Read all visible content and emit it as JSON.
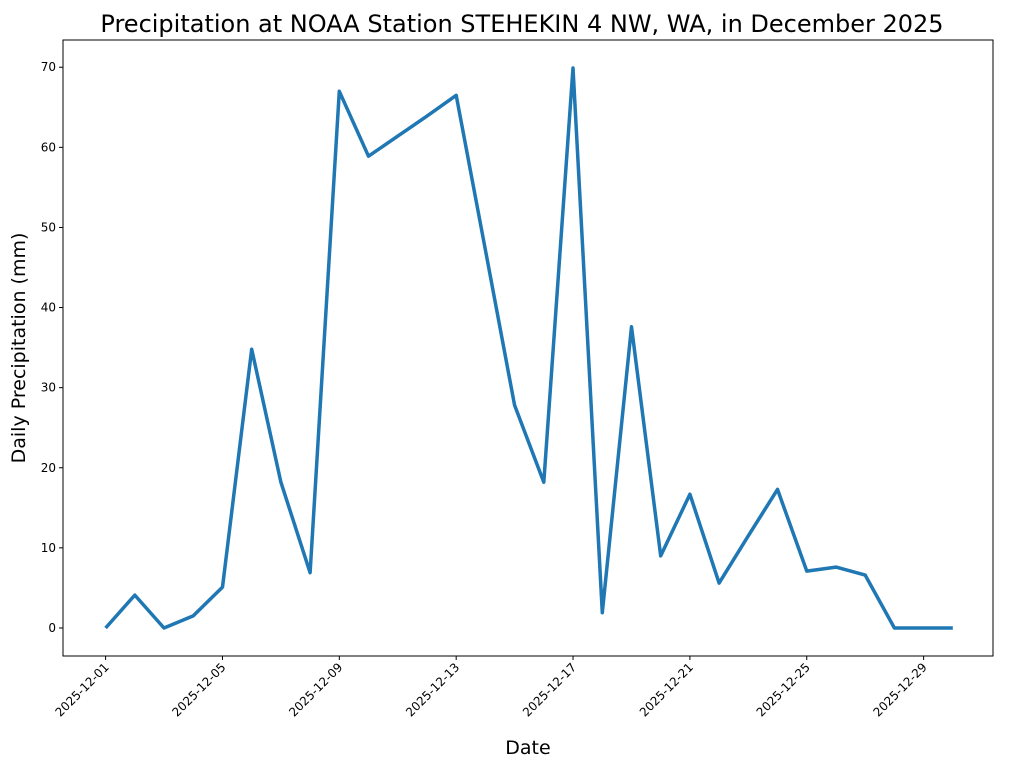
{
  "chart_data": {
    "type": "line",
    "title": "Precipitation at NOAA Station STEHEKIN 4 NW, WA, in December 2025",
    "xlabel": "Date",
    "ylabel": "Daily Precipitation (mm)",
    "x": [
      "2025-12-01",
      "2025-12-02",
      "2025-12-03",
      "2025-12-04",
      "2025-12-05",
      "2025-12-06",
      "2025-12-07",
      "2025-12-08",
      "2025-12-09",
      "2025-12-10",
      "2025-12-11",
      "2025-12-12",
      "2025-12-13",
      "2025-12-14",
      "2025-12-15",
      "2025-12-16",
      "2025-12-17",
      "2025-12-18",
      "2025-12-19",
      "2025-12-20",
      "2025-12-21",
      "2025-12-22",
      "2025-12-23",
      "2025-12-24",
      "2025-12-25",
      "2025-12-26",
      "2025-12-27",
      "2025-12-28",
      "2025-12-29",
      "2025-12-30"
    ],
    "series": [
      {
        "values": [
          0,
          4.1,
          0,
          1.5,
          5.1,
          34.8,
          18.2,
          6.9,
          67.0,
          58.9,
          61.4,
          63.9,
          66.5,
          47.2,
          27.8,
          18.2,
          69.9,
          1.9,
          37.6,
          9.0,
          16.7,
          5.6,
          11.5,
          17.3,
          7.1,
          7.6,
          6.6,
          0,
          0,
          0
        ],
        "color": "#1f77b4"
      }
    ],
    "xticks": [
      "2025-12-01",
      "2025-12-05",
      "2025-12-09",
      "2025-12-13",
      "2025-12-17",
      "2025-12-21",
      "2025-12-25",
      "2025-12-29"
    ],
    "yticks": [
      0,
      10,
      20,
      30,
      40,
      50,
      60,
      70
    ],
    "ylim": [
      -3.5,
      73.4
    ],
    "xlim": [
      "2025-11-29T13:00",
      "2025-12-31T09:00"
    ],
    "grid": false
  }
}
